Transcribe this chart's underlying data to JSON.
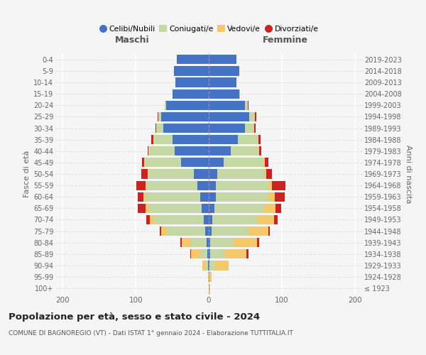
{
  "age_groups": [
    "100+",
    "95-99",
    "90-94",
    "85-89",
    "80-84",
    "75-79",
    "70-74",
    "65-69",
    "60-64",
    "55-59",
    "50-54",
    "45-49",
    "40-44",
    "35-39",
    "30-34",
    "25-29",
    "20-24",
    "15-19",
    "10-14",
    "5-9",
    "0-4"
  ],
  "birth_years": [
    "≤ 1923",
    "1924-1928",
    "1929-1933",
    "1934-1938",
    "1939-1943",
    "1944-1948",
    "1949-1953",
    "1954-1958",
    "1959-1963",
    "1964-1968",
    "1969-1973",
    "1974-1978",
    "1979-1983",
    "1984-1988",
    "1989-1993",
    "1994-1998",
    "1999-2003",
    "2004-2008",
    "2009-2013",
    "2014-2018",
    "2019-2023"
  ],
  "male": {
    "celibi": [
      0,
      0,
      1,
      2,
      3,
      5,
      7,
      10,
      12,
      16,
      20,
      38,
      47,
      50,
      62,
      65,
      58,
      50,
      46,
      48,
      44
    ],
    "coniugati": [
      0,
      0,
      3,
      10,
      22,
      52,
      68,
      72,
      75,
      70,
      63,
      50,
      36,
      26,
      10,
      4,
      2,
      0,
      0,
      0,
      0
    ],
    "vedovi": [
      0,
      1,
      5,
      12,
      12,
      8,
      6,
      5,
      2,
      1,
      1,
      0,
      0,
      0,
      0,
      0,
      0,
      0,
      0,
      0,
      0
    ],
    "divorziati": [
      0,
      0,
      0,
      1,
      2,
      2,
      5,
      10,
      8,
      12,
      8,
      3,
      1,
      3,
      1,
      1,
      0,
      0,
      0,
      0,
      0
    ]
  },
  "female": {
    "nubili": [
      0,
      0,
      1,
      2,
      2,
      4,
      5,
      8,
      10,
      10,
      12,
      20,
      30,
      40,
      50,
      55,
      50,
      42,
      38,
      42,
      38
    ],
    "coniugate": [
      0,
      0,
      8,
      20,
      32,
      50,
      62,
      68,
      72,
      72,
      65,
      55,
      38,
      28,
      12,
      8,
      3,
      1,
      0,
      0,
      0
    ],
    "vedove": [
      2,
      4,
      18,
      30,
      32,
      28,
      22,
      15,
      8,
      5,
      2,
      2,
      1,
      0,
      0,
      0,
      0,
      0,
      0,
      0,
      0
    ],
    "divorziate": [
      0,
      0,
      0,
      2,
      3,
      2,
      5,
      8,
      14,
      18,
      8,
      5,
      3,
      3,
      2,
      2,
      1,
      0,
      0,
      0,
      0
    ]
  },
  "colors": {
    "celibi": "#4472c4",
    "coniugati": "#c5d8a4",
    "vedovi": "#f5c969",
    "divorziati": "#cc2222"
  },
  "xlim": 210,
  "title": "Popolazione per età, sesso e stato civile - 2024",
  "subtitle": "COMUNE DI BAGNOREGIO (VT) - Dati ISTAT 1° gennaio 2024 - Elaborazione TUTTITALIA.IT",
  "ylabel_left": "Fasce di età",
  "ylabel_right": "Anni di nascita",
  "xlabel_maschi": "Maschi",
  "xlabel_femmine": "Femmine",
  "legend_labels": [
    "Celibi/Nubili",
    "Coniugati/e",
    "Vedovi/e",
    "Divorziati/e"
  ],
  "bg_color": "#f5f5f5"
}
